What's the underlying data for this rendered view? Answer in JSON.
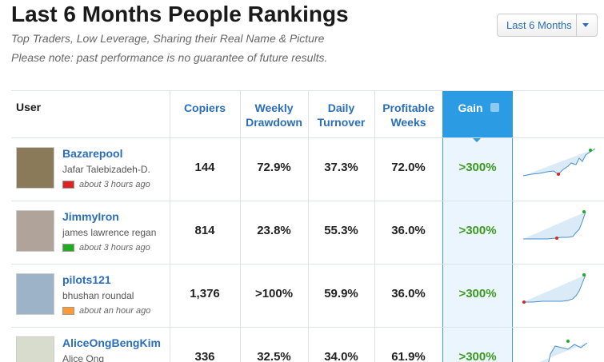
{
  "header": {
    "title": "Last 6 Months People Rankings",
    "subtitle": "Top Traders, Low Leverage, Sharing their Real Name & Picture",
    "disclaimer": "Please note: past performance is no guarantee of future results.",
    "period_button": "Last 6 Months"
  },
  "table": {
    "columns": [
      "User",
      "Copiers",
      "Weekly Drawdown",
      "Daily Turnover",
      "Profitable Weeks",
      "Gain"
    ],
    "rows": [
      {
        "username": "Bazarepool",
        "real_name": "Jafar Talebizadeh-D.",
        "last_seen": "about 3 hours ago",
        "cells": [
          "144",
          "72.9%",
          "37.3%",
          "72.0%",
          ">300%"
        ]
      },
      {
        "username": "JimmyIron",
        "real_name": "james lawrence regan",
        "last_seen": "about 3 hours ago",
        "cells": [
          "814",
          "23.8%",
          "55.3%",
          "36.0%",
          ">300%"
        ]
      },
      {
        "username": "pilots121",
        "real_name": "bhushan roundal",
        "last_seen": "about an hour ago",
        "cells": [
          "1,376",
          ">100%",
          "59.9%",
          "36.0%",
          ">300%"
        ]
      },
      {
        "username": "AliceOngBengKim",
        "real_name": "Alice Ong",
        "cells": [
          "336",
          "32.5%",
          "34.0%",
          "61.9%",
          ">300%"
        ]
      }
    ]
  }
}
